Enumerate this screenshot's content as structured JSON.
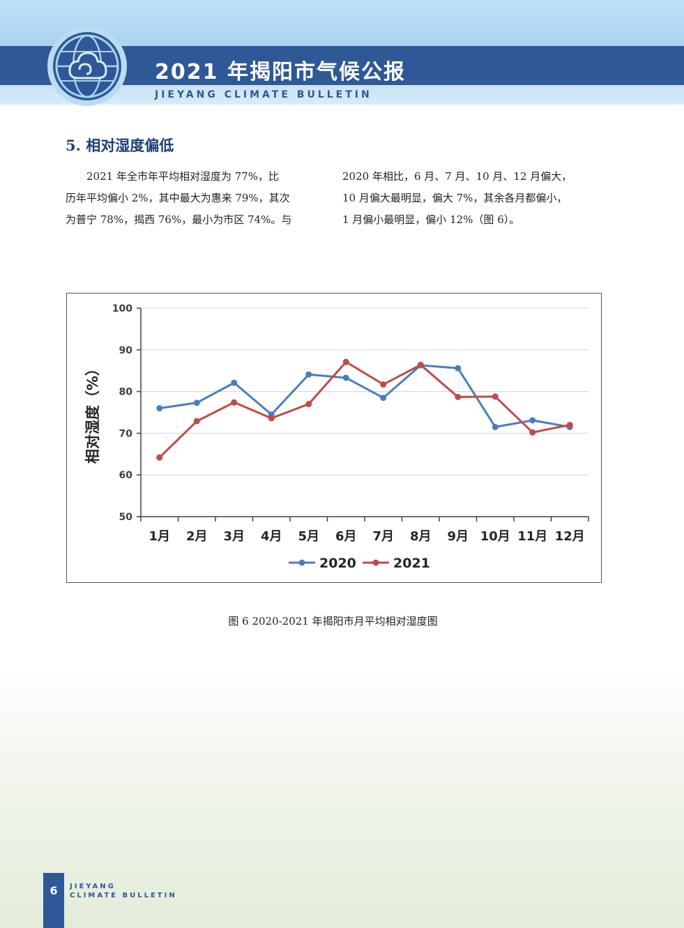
{
  "header": {
    "title_cn": "2021 年揭阳市气候公报",
    "title_en": "JIEYANG CLIMATE BULLETIN"
  },
  "section": {
    "heading": "5. 相对湿度偏低",
    "left_lines": [
      "2021 年全市年平均相对湿度为 77%，比",
      "历年平均偏小 2%，其中最大为惠来 79%，其次",
      "为普宁 78%，揭西 76%，最小为市区 74%。与"
    ],
    "right_lines": [
      "2020 年相比，6 月、7 月、10 月、12 月偏大，",
      "10 月偏大最明显，偏大 7%，其余各月都偏小，",
      "1 月偏小最明显，偏小 12%（图 6）。"
    ]
  },
  "chart_data": {
    "type": "line",
    "title": "",
    "ylabel": "相对湿度（%）",
    "xlabel": "",
    "ylim": [
      50,
      100
    ],
    "yticks": [
      50,
      60,
      70,
      80,
      90,
      100
    ],
    "categories": [
      "1月",
      "2月",
      "3月",
      "4月",
      "5月",
      "6月",
      "7月",
      "8月",
      "9月",
      "10月",
      "11月",
      "12月"
    ],
    "grid": true,
    "legend_position": "bottom",
    "series": [
      {
        "name": "2020",
        "color": "#4a7ebb",
        "values": [
          76.0,
          77.3,
          82.1,
          74.5,
          84.1,
          83.3,
          78.5,
          86.3,
          85.6,
          71.5,
          73.1,
          71.5
        ]
      },
      {
        "name": "2021",
        "color": "#be4b48",
        "values": [
          64.2,
          72.9,
          77.4,
          73.6,
          77.0,
          87.1,
          81.7,
          86.4,
          78.7,
          78.8,
          70.2,
          72.0
        ]
      }
    ]
  },
  "caption": "图 6  2020-2021 年揭阳市月平均相对湿度图",
  "footer": {
    "page_number": "6",
    "line1": "JIEYANG",
    "line2": "CLIMATE BULLETIN"
  },
  "colors": {
    "brand_blue": "#2f5896",
    "heading_blue": "#1d3f78"
  }
}
